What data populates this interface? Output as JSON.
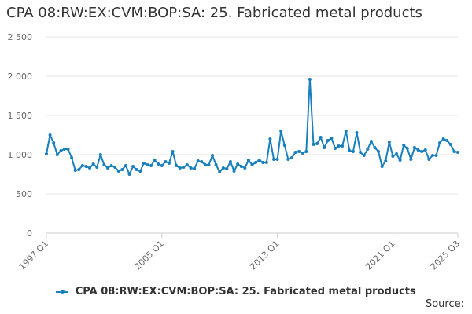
{
  "chart_data": {
    "type": "line",
    "title": "CPA 08:RW:EX:CVM:BOP:SA: 25. Fabricated metal products",
    "xlabel": "",
    "ylabel": "",
    "ylim": [
      0,
      2500
    ],
    "y_ticks": [
      0,
      500,
      1000,
      1500,
      2000,
      2500
    ],
    "y_tick_labels": [
      "0",
      "500",
      "1 000",
      "1 500",
      "2 000",
      "2 500"
    ],
    "x_start": "1997 Q1",
    "x_end": "2025 Q3",
    "x_tick_labels": [
      "1997 Q1",
      "2005 Q1",
      "2013 Q1",
      "2021 Q1",
      "2025 Q3"
    ],
    "grid": true,
    "legend_position": "bottom",
    "source_label": "Source:",
    "colors": {
      "series": "#1a7fbd",
      "grid": "#e6e6e6",
      "axis": "#cccccc"
    },
    "series": [
      {
        "name": "CPA 08:RW:EX:CVM:BOP:SA: 25. Fabricated metal products",
        "values": [
          1010,
          1250,
          1150,
          1000,
          1050,
          1070,
          1070,
          960,
          800,
          810,
          860,
          850,
          830,
          880,
          840,
          1000,
          870,
          830,
          860,
          840,
          790,
          810,
          860,
          750,
          850,
          810,
          790,
          890,
          870,
          860,
          930,
          880,
          860,
          910,
          890,
          1040,
          860,
          830,
          840,
          870,
          830,
          820,
          920,
          910,
          870,
          870,
          990,
          870,
          780,
          830,
          820,
          910,
          790,
          880,
          850,
          830,
          930,
          870,
          900,
          930,
          900,
          900,
          1200,
          940,
          940,
          1300,
          1120,
          940,
          960,
          1030,
          1040,
          1020,
          1040,
          1960,
          1130,
          1140,
          1220,
          1090,
          1180,
          1210,
          1080,
          1110,
          1110,
          1300,
          1050,
          1040,
          1280,
          1030,
          990,
          1070,
          1170,
          1090,
          1040,
          850,
          920,
          1160,
          980,
          1010,
          930,
          1120,
          1080,
          940,
          1090,
          1060,
          1040,
          1060,
          940,
          990,
          990,
          1150,
          1200,
          1180,
          1130,
          1040,
          1030
        ]
      }
    ]
  }
}
